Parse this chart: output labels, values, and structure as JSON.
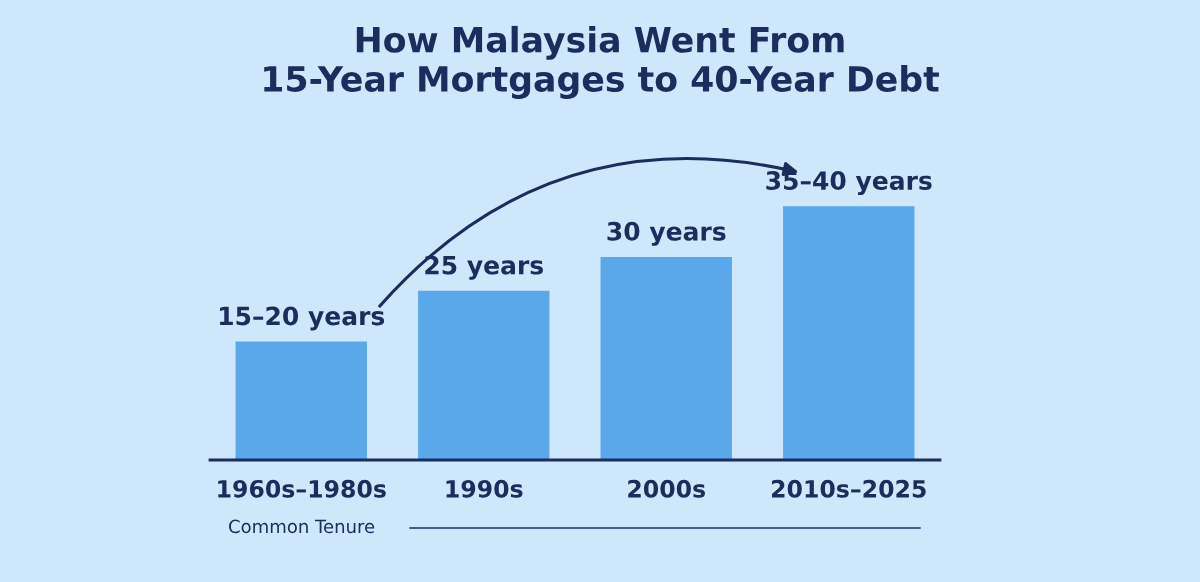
{
  "chart_data": {
    "type": "bar",
    "title": "How Malaysia Went From\n15-Year Mortgages to 40-Year Debt",
    "categories": [
      "1960s–1980s",
      "1990s",
      "2000s",
      "2010s–2025"
    ],
    "values": [
      17.5,
      25,
      30,
      37.5
    ],
    "value_labels": [
      "15–20 years",
      "25 years",
      "30 years",
      "35–40 years"
    ],
    "color": "#5aa8ea",
    "grid": false,
    "legend": false,
    "annotations": [
      "Common Tenure"
    ]
  }
}
